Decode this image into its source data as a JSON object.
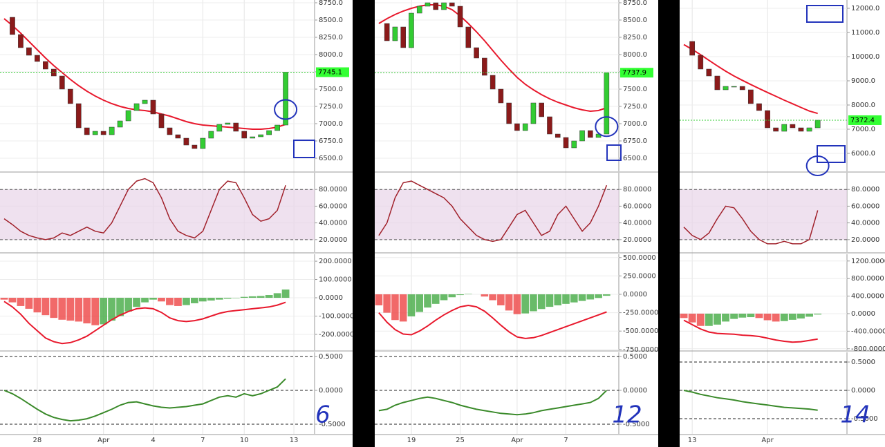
{
  "chart_data": [
    {
      "type": "candlestick",
      "categories": [
        null,
        null,
        null,
        null,
        "28",
        null,
        null,
        null,
        null,
        null,
        null,
        null,
        "Apr",
        null,
        null,
        null,
        null,
        null,
        "4",
        null,
        null,
        null,
        null,
        null,
        "7",
        null,
        null,
        null,
        null,
        "10",
        null,
        null,
        null,
        null,
        null,
        "13",
        null,
        null
      ],
      "annotation": "6",
      "price": {
        "ylim": [
          6310,
          8790
        ],
        "yticks": [
          {
            "value": 6500,
            "label": "6500.0"
          },
          {
            "value": 6750,
            "label": "6750.0"
          },
          {
            "value": 7000,
            "label": "7000.0"
          },
          {
            "value": 7250,
            "label": "7250.0"
          },
          {
            "value": 7500,
            "label": "7500.0"
          },
          {
            "value": 7750,
            "label": "7750.0"
          },
          {
            "value": 8000,
            "label": "8000.0"
          },
          {
            "value": 8250,
            "label": "8250.0"
          },
          {
            "value": 8500,
            "label": "8500.0"
          },
          {
            "value": 8750,
            "label": "8750.0"
          }
        ],
        "up_color": "#33cc33",
        "down_color": "#8b1a1a",
        "values": [
          8540,
          8290,
          8100,
          7990,
          7900,
          7790,
          7690,
          7500,
          7290,
          6940,
          6840,
          6890,
          6840,
          6950,
          7040,
          7190,
          7290,
          7340,
          7140,
          6940,
          6840,
          6790,
          6690,
          6640,
          6790,
          6890,
          6990,
          7010,
          6890,
          6790,
          6810,
          6840,
          6900,
          6980,
          7745.1,
          null,
          null,
          null
        ],
        "ma": {
          "color": "#e8182c",
          "values": [
            8520,
            8420,
            8310,
            8190,
            8070,
            7950,
            7840,
            7740,
            7640,
            7550,
            7470,
            7400,
            7340,
            7290,
            7250,
            7220,
            7200,
            7190,
            7170,
            7140,
            7110,
            7070,
            7030,
            7000,
            6980,
            6970,
            6960,
            6950,
            6940,
            6930,
            6920,
            6920,
            6930,
            6950,
            6990,
            null,
            null,
            null
          ]
        }
      },
      "stochastic": {
        "ylim": [
          5,
          100
        ],
        "color": "#a0202a",
        "yticks": [
          {
            "value": 20,
            "label": "20.0000"
          },
          {
            "value": 40,
            "label": "40.0000"
          },
          {
            "value": 60,
            "label": "60.0000"
          },
          {
            "value": 80,
            "label": "80.0000"
          }
        ],
        "values": [
          45,
          38,
          30,
          25,
          22,
          20,
          22,
          28,
          25,
          30,
          35,
          30,
          28,
          40,
          60,
          80,
          90,
          93,
          88,
          70,
          45,
          30,
          25,
          22,
          30,
          55,
          80,
          90,
          88,
          70,
          50,
          42,
          45,
          55,
          85,
          null,
          null,
          null
        ]
      },
      "macd": {
        "ylim": [
          -287,
          238
        ],
        "up_color": "#44aa44",
        "down_color": "#ee4444",
        "yticks": [
          {
            "value": -200,
            "label": "-200.0000"
          },
          {
            "value": -100,
            "label": "-100.0000"
          },
          {
            "value": 0,
            "label": "0.0000"
          },
          {
            "value": 100,
            "label": "100.0000"
          },
          {
            "value": 200,
            "label": "200.0000"
          }
        ],
        "values": [
          -10,
          -25,
          -45,
          -60,
          -80,
          -95,
          -110,
          -120,
          -125,
          -130,
          -140,
          -150,
          -145,
          -125,
          -100,
          -75,
          -50,
          -25,
          -10,
          -20,
          -40,
          -45,
          -40,
          -30,
          -20,
          -15,
          -10,
          -5,
          -2,
          5,
          8,
          10,
          15,
          25,
          45,
          null,
          null,
          null
        ],
        "line": {
          "color": "#e8182c",
          "values": [
            -20,
            -50,
            -90,
            -140,
            -180,
            -220,
            -240,
            -250,
            -245,
            -230,
            -210,
            -180,
            -150,
            -120,
            -95,
            -75,
            -60,
            -55,
            -60,
            -80,
            -110,
            -125,
            -130,
            -125,
            -115,
            -100,
            -85,
            -75,
            -70,
            -65,
            -60,
            -55,
            -50,
            -40,
            -25,
            null,
            null,
            null
          ]
        }
      },
      "oscillator": {
        "ylim": [
          -0.643,
          0.561
        ],
        "color": "#3a8a2a",
        "yticks": [
          {
            "value": -0.5,
            "label": "-0.5000"
          },
          {
            "value": 0,
            "label": "0.0000"
          },
          {
            "value": 0.5,
            "label": "0.5000"
          }
        ],
        "values": [
          0,
          -0.05,
          -0.12,
          -0.2,
          -0.28,
          -0.35,
          -0.4,
          -0.43,
          -0.45,
          -0.44,
          -0.42,
          -0.38,
          -0.33,
          -0.28,
          -0.22,
          -0.18,
          -0.17,
          -0.2,
          -0.23,
          -0.25,
          -0.26,
          -0.25,
          -0.24,
          -0.22,
          -0.2,
          -0.15,
          -0.1,
          -0.08,
          -0.1,
          -0.05,
          -0.08,
          -0.05,
          0,
          0.05,
          0.17,
          null,
          null,
          null
        ]
      }
    },
    {
      "type": "candlestick",
      "categories": [
        null,
        null,
        null,
        null,
        "19",
        null,
        null,
        null,
        null,
        null,
        "25",
        null,
        null,
        null,
        null,
        null,
        null,
        "Apr",
        null,
        null,
        null,
        null,
        null,
        "7",
        null,
        null,
        null,
        null,
        null,
        null
      ],
      "annotation": "12",
      "price": {
        "ylim": [
          6310,
          8790
        ],
        "yticks": [
          {
            "value": 6500,
            "label": "6500.0"
          },
          {
            "value": 6750,
            "label": "6750.0"
          },
          {
            "value": 7000,
            "label": "7000.0"
          },
          {
            "value": 7250,
            "label": "7250.0"
          },
          {
            "value": 7500,
            "label": "7500.0"
          },
          {
            "value": 7750,
            "label": "7750.0"
          },
          {
            "value": 8000,
            "label": "8000.0"
          },
          {
            "value": 8250,
            "label": "8250.0"
          },
          {
            "value": 8500,
            "label": "8500.0"
          },
          {
            "value": 8750,
            "label": "8750.0"
          }
        ],
        "up_color": "#33cc33",
        "down_color": "#8b1a1a",
        "values": [
          8450,
          8200,
          8400,
          8100,
          8600,
          8700,
          8750,
          8650,
          8750,
          8700,
          8400,
          8100,
          7950,
          7700,
          7500,
          7300,
          7000,
          6900,
          7000,
          7300,
          7100,
          6850,
          6800,
          6650,
          6750,
          6900,
          6800,
          6850,
          7737.9,
          null
        ],
        "ma": {
          "color": "#e8182c",
          "values": [
            8450,
            8520,
            8580,
            8630,
            8670,
            8700,
            8720,
            8720,
            8700,
            8650,
            8560,
            8450,
            8330,
            8200,
            8060,
            7920,
            7790,
            7670,
            7570,
            7490,
            7420,
            7360,
            7310,
            7270,
            7230,
            7200,
            7180,
            7190,
            7230,
            null
          ]
        }
      },
      "stochastic": {
        "ylim": [
          5,
          100
        ],
        "color": "#a0202a",
        "yticks": [
          {
            "value": 20,
            "label": "20.0000"
          },
          {
            "value": 40,
            "label": "40.0000"
          },
          {
            "value": 60,
            "label": "60.0000"
          },
          {
            "value": 80,
            "label": "80.0000"
          }
        ],
        "values": [
          25,
          40,
          70,
          88,
          90,
          85,
          80,
          75,
          70,
          60,
          45,
          35,
          25,
          20,
          18,
          20,
          35,
          50,
          55,
          40,
          25,
          30,
          50,
          60,
          45,
          30,
          40,
          60,
          85,
          null
        ]
      },
      "macd": {
        "ylim": [
          -761,
          545
        ],
        "up_color": "#44aa44",
        "down_color": "#ee4444",
        "yticks": [
          {
            "value": -750,
            "label": "-750.0000"
          },
          {
            "value": -500,
            "label": "-500.0000"
          },
          {
            "value": -250,
            "label": "-250.0000"
          },
          {
            "value": 0,
            "label": "0.0000"
          },
          {
            "value": 250,
            "label": "250.0000"
          },
          {
            "value": 500,
            "label": "500.0000"
          }
        ],
        "values": [
          -150,
          -250,
          -350,
          -370,
          -300,
          -240,
          -180,
          -130,
          -80,
          -40,
          -10,
          5,
          0,
          -30,
          -80,
          -150,
          -220,
          -270,
          -260,
          -230,
          -200,
          -170,
          -150,
          -130,
          -110,
          -90,
          -70,
          -50,
          -20,
          null
        ],
        "line": {
          "color": "#e8182c",
          "values": [
            -250,
            -380,
            -480,
            -540,
            -550,
            -500,
            -430,
            -350,
            -280,
            -220,
            -170,
            -150,
            -170,
            -230,
            -320,
            -420,
            -510,
            -580,
            -600,
            -590,
            -560,
            -520,
            -480,
            -440,
            -400,
            -360,
            -320,
            -280,
            -240,
            null
          ]
        }
      },
      "oscillator": {
        "ylim": [
          -0.643,
          0.561
        ],
        "color": "#3a8a2a",
        "yticks": [
          {
            "value": -0.5,
            "label": "-0.5000"
          },
          {
            "value": 0,
            "label": "0.0000"
          },
          {
            "value": 0.5,
            "label": "0.5000"
          }
        ],
        "values": [
          -0.3,
          -0.28,
          -0.22,
          -0.18,
          -0.15,
          -0.12,
          -0.1,
          -0.12,
          -0.15,
          -0.18,
          -0.22,
          -0.25,
          -0.28,
          -0.3,
          -0.32,
          -0.34,
          -0.35,
          -0.36,
          -0.35,
          -0.33,
          -0.3,
          -0.28,
          -0.26,
          -0.24,
          -0.22,
          -0.2,
          -0.18,
          -0.12,
          0,
          null
        ]
      }
    },
    {
      "type": "candlestick",
      "categories": [
        null,
        "13",
        null,
        null,
        null,
        null,
        null,
        null,
        null,
        null,
        "Apr",
        null,
        null,
        null,
        null,
        null,
        null,
        null,
        null,
        null
      ],
      "annotation": "14",
      "price": {
        "ylim": [
          5257,
          12343
        ],
        "yticks": [
          {
            "value": 6000,
            "label": "6000.0"
          },
          {
            "value": 7000,
            "label": "7000.0"
          },
          {
            "value": 8000,
            "label": "8000.0"
          },
          {
            "value": 9000,
            "label": "9000.0"
          },
          {
            "value": 10000,
            "label": "10000.0"
          },
          {
            "value": 11000,
            "label": "11000.0"
          },
          {
            "value": 12000,
            "label": "12000.0"
          }
        ],
        "up_color": "#33cc33",
        "down_color": "#8b1a1a",
        "values": [
          10630,
          10057,
          9486,
          9200,
          8629,
          8771,
          8771,
          8629,
          8057,
          7771,
          7057,
          6914,
          7200,
          7057,
          6914,
          7057,
          7372.4,
          null,
          null,
          null
        ],
        "ma": {
          "color": "#e8182c",
          "values": [
            10500,
            10300,
            10080,
            9850,
            9620,
            9400,
            9200,
            9020,
            8850,
            8680,
            8520,
            8360,
            8200,
            8050,
            7900,
            7750,
            7650,
            null,
            null,
            null
          ]
        }
      },
      "stochastic": {
        "ylim": [
          5,
          100
        ],
        "color": "#a0202a",
        "yticks": [
          {
            "value": 20,
            "label": "20.0000"
          },
          {
            "value": 40,
            "label": "40.0000"
          },
          {
            "value": 60,
            "label": "60.0000"
          },
          {
            "value": 80,
            "label": "80.0000"
          }
        ],
        "values": [
          35,
          25,
          20,
          28,
          45,
          60,
          58,
          45,
          30,
          20,
          15,
          15,
          18,
          15,
          15,
          20,
          55,
          null,
          null,
          null
        ]
      },
      "macd": {
        "ylim": [
          -835,
          1354
        ],
        "up_color": "#44aa44",
        "down_color": "#ee4444",
        "yticks": [
          {
            "value": -800,
            "label": "-800.0000"
          },
          {
            "value": -400,
            "label": "-400.0000"
          },
          {
            "value": 0,
            "label": "0.0000"
          },
          {
            "value": 400,
            "label": "400.0000"
          },
          {
            "value": 800,
            "label": "800.0000"
          },
          {
            "value": 1200,
            "label": "1200.0000"
          }
        ],
        "values": [
          -100,
          -200,
          -280,
          -280,
          -250,
          -180,
          -120,
          -90,
          -80,
          -100,
          -150,
          -180,
          -170,
          -140,
          -110,
          -70,
          -20,
          null,
          null,
          null
        ],
        "line": {
          "color": "#e8182c",
          "values": [
            -150,
            -250,
            -350,
            -420,
            -450,
            -460,
            -470,
            -490,
            -500,
            -520,
            -560,
            -600,
            -630,
            -650,
            -640,
            -610,
            -580,
            null,
            null,
            null
          ]
        }
      },
      "oscillator": {
        "ylim": [
          -0.768,
          0.671
        ],
        "color": "#3a8a2a",
        "yticks": [
          {
            "value": -0.5,
            "label": "-0.5000"
          },
          {
            "value": 0,
            "label": "0.0000"
          },
          {
            "value": 0.5,
            "label": "0.5000"
          }
        ],
        "values": [
          0,
          -0.03,
          -0.07,
          -0.1,
          -0.13,
          -0.15,
          -0.17,
          -0.2,
          -0.22,
          -0.24,
          -0.26,
          -0.28,
          -0.3,
          -0.31,
          -0.32,
          -0.33,
          -0.35,
          null,
          null,
          null
        ]
      }
    }
  ]
}
